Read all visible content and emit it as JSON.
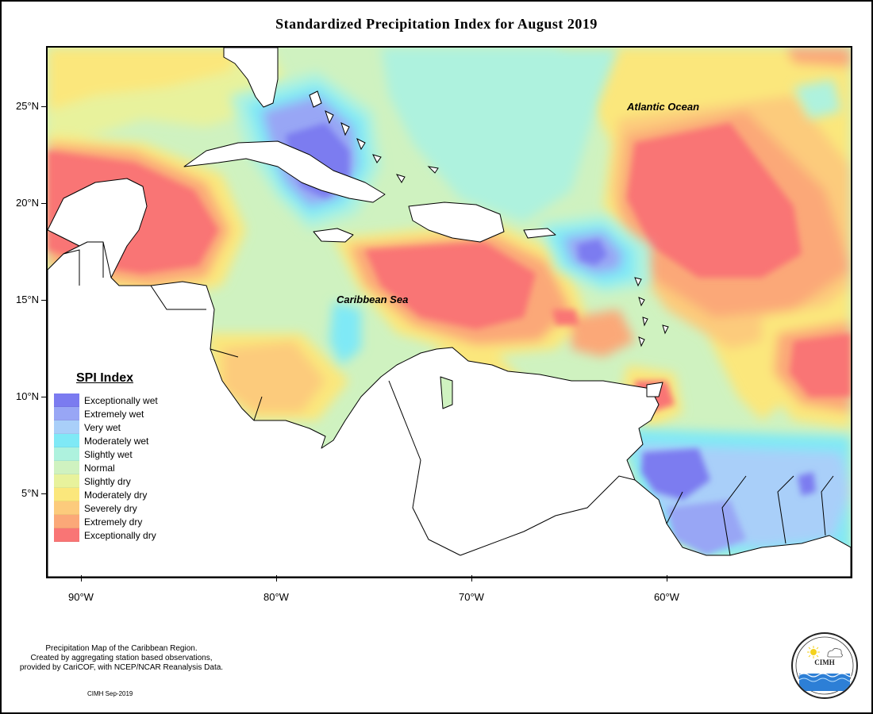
{
  "title": "Standardized Precipitation Index for August 2019",
  "map": {
    "lat_ticks": [
      {
        "label": "25°N",
        "lat": 25
      },
      {
        "label": "20°N",
        "lat": 20
      },
      {
        "label": "15°N",
        "lat": 15
      },
      {
        "label": "10°N",
        "lat": 10
      },
      {
        "label": "5°N",
        "lat": 5
      }
    ],
    "lon_ticks": [
      {
        "label": "90°W",
        "lon": -90
      },
      {
        "label": "80°W",
        "lon": -80
      },
      {
        "label": "70°W",
        "lon": -70
      },
      {
        "label": "60°W",
        "lon": -60
      }
    ],
    "region_labels": {
      "atlantic": "Atlantic Ocean",
      "caribbean": "Caribbean Sea"
    }
  },
  "legend": {
    "title": "SPI Index",
    "items": [
      {
        "label": "Exceptionally wet",
        "color": "#7b7bf0"
      },
      {
        "label": "Extremely wet",
        "color": "#98a6f5"
      },
      {
        "label": "Very wet",
        "color": "#a9cff9"
      },
      {
        "label": "Moderately wet",
        "color": "#7fe9f6"
      },
      {
        "label": "Slightly wet",
        "color": "#aef2de"
      },
      {
        "label": "Normal",
        "color": "#cff2c0"
      },
      {
        "label": "Slightly dry",
        "color": "#e8f29c"
      },
      {
        "label": "Moderately dry",
        "color": "#fbe77c"
      },
      {
        "label": "Severely dry",
        "color": "#fccb7c"
      },
      {
        "label": "Extremely dry",
        "color": "#fba878"
      },
      {
        "label": "Exceptionally dry",
        "color": "#f97575"
      }
    ]
  },
  "notes": {
    "line1": "Precipitation Map of the Caribbean Region.",
    "line2": "Created by aggregating station based observations,",
    "line3": "provided by CariCOF, with NCEP/NCAR Reanalysis Data.",
    "credit": "CIMH Sep-2019"
  },
  "logo": {
    "abbr": "CIMH",
    "sun_icon": "sun-icon",
    "cloud_icon": "cloud-icon",
    "wave_icon": "wave-icon"
  }
}
